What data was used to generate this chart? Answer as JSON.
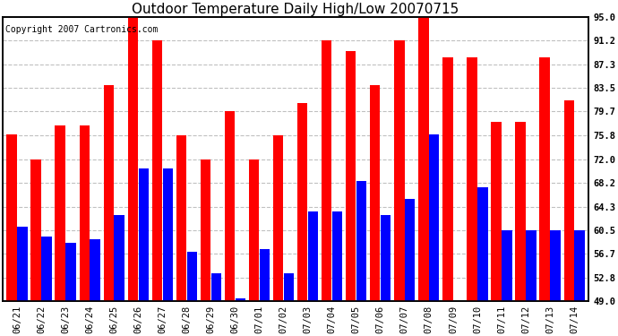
{
  "title": "Outdoor Temperature Daily High/Low 20070715",
  "copyright": "Copyright 2007 Cartronics.com",
  "dates": [
    "06/21",
    "06/22",
    "06/23",
    "06/24",
    "06/25",
    "06/26",
    "06/27",
    "06/28",
    "06/29",
    "06/30",
    "07/01",
    "07/02",
    "07/03",
    "07/04",
    "07/05",
    "07/06",
    "07/07",
    "07/08",
    "07/09",
    "07/10",
    "07/11",
    "07/12",
    "07/13",
    "07/14"
  ],
  "highs": [
    76.0,
    72.0,
    77.5,
    77.5,
    84.0,
    95.0,
    91.2,
    75.8,
    72.0,
    79.7,
    72.0,
    75.8,
    81.0,
    91.2,
    89.5,
    84.0,
    91.2,
    95.0,
    88.5,
    88.5,
    78.0,
    78.0,
    88.5,
    81.5
  ],
  "lows": [
    61.0,
    59.5,
    58.5,
    59.0,
    63.0,
    70.5,
    70.5,
    57.0,
    53.5,
    49.5,
    57.5,
    53.5,
    63.5,
    63.5,
    68.5,
    63.0,
    65.5,
    76.0,
    49.0,
    67.5,
    60.5,
    60.5,
    60.5,
    60.5
  ],
  "high_color": "#ff0000",
  "low_color": "#0000ff",
  "background_color": "#ffffff",
  "grid_color": "#c0c0c0",
  "ylim": [
    49.0,
    95.0
  ],
  "yticks": [
    49.0,
    52.8,
    56.7,
    60.5,
    64.3,
    68.2,
    72.0,
    75.8,
    79.7,
    83.5,
    87.3,
    91.2,
    95.0
  ],
  "title_fontsize": 11,
  "copyright_fontsize": 7,
  "tick_fontsize": 7.5
}
